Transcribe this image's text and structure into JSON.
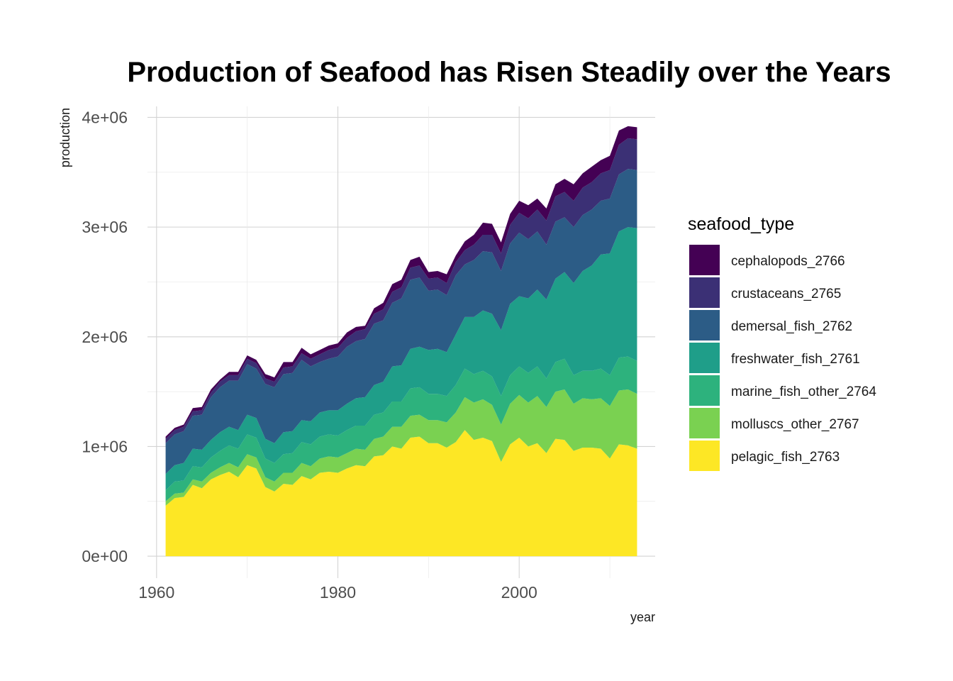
{
  "chart_data": {
    "type": "area",
    "stacked": true,
    "title": "Production of Seafood has Risen Steadily over the Years",
    "xlabel": "year",
    "ylabel": "production",
    "xlim": [
      1959,
      2015
    ],
    "ylim": [
      -200000,
      4100000
    ],
    "x_ticks": [
      1960,
      1980,
      2000
    ],
    "x_tick_labels": [
      "1960",
      "1980",
      "2000"
    ],
    "y_ticks": [
      0,
      1000000,
      2000000,
      3000000,
      4000000
    ],
    "y_tick_labels": [
      "0e+00",
      "1e+06",
      "2e+06",
      "3e+06",
      "4e+06"
    ],
    "grid": true,
    "legend_title": "seafood_type",
    "legend_position": "right",
    "x": [
      1961,
      1962,
      1963,
      1964,
      1965,
      1966,
      1967,
      1968,
      1969,
      1970,
      1971,
      1972,
      1973,
      1974,
      1975,
      1976,
      1977,
      1978,
      1979,
      1980,
      1981,
      1982,
      1983,
      1984,
      1985,
      1986,
      1987,
      1988,
      1989,
      1990,
      1991,
      1992,
      1993,
      1994,
      1995,
      1996,
      1997,
      1998,
      1999,
      2000,
      2001,
      2002,
      2003,
      2004,
      2005,
      2006,
      2007,
      2008,
      2009,
      2010,
      2011,
      2012,
      2013
    ],
    "series": [
      {
        "name": "pelagic_fish_2763",
        "color": "#fde725",
        "values": [
          460000,
          530000,
          540000,
          650000,
          620000,
          700000,
          740000,
          770000,
          720000,
          830000,
          800000,
          630000,
          590000,
          660000,
          650000,
          730000,
          700000,
          760000,
          770000,
          760000,
          800000,
          830000,
          820000,
          910000,
          920000,
          1000000,
          980000,
          1080000,
          1090000,
          1030000,
          1030000,
          990000,
          1040000,
          1150000,
          1060000,
          1080000,
          1050000,
          860000,
          1020000,
          1080000,
          1000000,
          1030000,
          940000,
          1070000,
          1060000,
          960000,
          990000,
          990000,
          980000,
          890000,
          1020000,
          1010000,
          980000
        ]
      },
      {
        "name": "molluscs_other_2767",
        "color": "#7ad151",
        "values": [
          40000,
          40000,
          40000,
          50000,
          60000,
          60000,
          70000,
          80000,
          90000,
          100000,
          100000,
          90000,
          90000,
          100000,
          110000,
          120000,
          120000,
          130000,
          140000,
          140000,
          140000,
          150000,
          150000,
          160000,
          170000,
          180000,
          200000,
          200000,
          200000,
          210000,
          210000,
          230000,
          270000,
          300000,
          340000,
          350000,
          330000,
          340000,
          370000,
          390000,
          400000,
          430000,
          420000,
          430000,
          460000,
          430000,
          450000,
          440000,
          460000,
          480000,
          490000,
          510000,
          500000
        ]
      },
      {
        "name": "marine_fish_other_2764",
        "color": "#2db27d",
        "values": [
          100000,
          110000,
          110000,
          120000,
          130000,
          140000,
          150000,
          160000,
          170000,
          180000,
          180000,
          170000,
          170000,
          170000,
          180000,
          190000,
          200000,
          200000,
          200000,
          200000,
          210000,
          210000,
          220000,
          220000,
          220000,
          230000,
          230000,
          250000,
          250000,
          240000,
          240000,
          240000,
          250000,
          260000,
          260000,
          260000,
          260000,
          260000,
          260000,
          260000,
          270000,
          270000,
          260000,
          270000,
          280000,
          260000,
          250000,
          260000,
          270000,
          280000,
          300000,
          300000,
          300000
        ]
      },
      {
        "name": "freshwater_fish_2761",
        "color": "#1f9e89",
        "values": [
          150000,
          150000,
          160000,
          160000,
          160000,
          160000,
          170000,
          170000,
          170000,
          180000,
          180000,
          180000,
          180000,
          200000,
          200000,
          200000,
          210000,
          220000,
          220000,
          230000,
          240000,
          250000,
          260000,
          270000,
          280000,
          320000,
          330000,
          360000,
          370000,
          400000,
          410000,
          400000,
          460000,
          470000,
          520000,
          550000,
          570000,
          600000,
          650000,
          640000,
          680000,
          700000,
          720000,
          760000,
          790000,
          840000,
          910000,
          960000,
          1040000,
          1110000,
          1150000,
          1180000,
          1210000
        ]
      },
      {
        "name": "demersal_fish_2762",
        "color": "#2c5c86",
        "values": [
          280000,
          280000,
          290000,
          300000,
          320000,
          390000,
          410000,
          420000,
          450000,
          460000,
          450000,
          500000,
          510000,
          530000,
          530000,
          550000,
          500000,
          460000,
          470000,
          490000,
          520000,
          520000,
          530000,
          560000,
          560000,
          580000,
          610000,
          630000,
          630000,
          540000,
          540000,
          520000,
          540000,
          480000,
          520000,
          540000,
          560000,
          540000,
          550000,
          580000,
          540000,
          530000,
          500000,
          520000,
          500000,
          510000,
          510000,
          510000,
          490000,
          500000,
          520000,
          530000,
          530000
        ]
      },
      {
        "name": "crustaceans_2765",
        "color": "#3b3075",
        "values": [
          40000,
          40000,
          40000,
          40000,
          40000,
          40000,
          50000,
          50000,
          50000,
          50000,
          50000,
          50000,
          50000,
          60000,
          60000,
          60000,
          70000,
          70000,
          80000,
          80000,
          80000,
          90000,
          90000,
          90000,
          100000,
          100000,
          100000,
          110000,
          110000,
          110000,
          110000,
          110000,
          120000,
          130000,
          140000,
          150000,
          160000,
          160000,
          170000,
          180000,
          190000,
          200000,
          220000,
          230000,
          230000,
          240000,
          250000,
          250000,
          250000,
          260000,
          270000,
          280000,
          280000
        ]
      },
      {
        "name": "cephalopods_2766",
        "color": "#440154",
        "values": [
          20000,
          20000,
          20000,
          30000,
          30000,
          30000,
          20000,
          30000,
          30000,
          30000,
          30000,
          40000,
          40000,
          50000,
          40000,
          50000,
          40000,
          40000,
          40000,
          40000,
          50000,
          40000,
          30000,
          50000,
          60000,
          70000,
          70000,
          70000,
          80000,
          60000,
          60000,
          80000,
          60000,
          80000,
          90000,
          110000,
          100000,
          100000,
          100000,
          110000,
          120000,
          100000,
          110000,
          110000,
          120000,
          150000,
          130000,
          140000,
          120000,
          130000,
          130000,
          110000,
          110000
        ]
      }
    ]
  }
}
